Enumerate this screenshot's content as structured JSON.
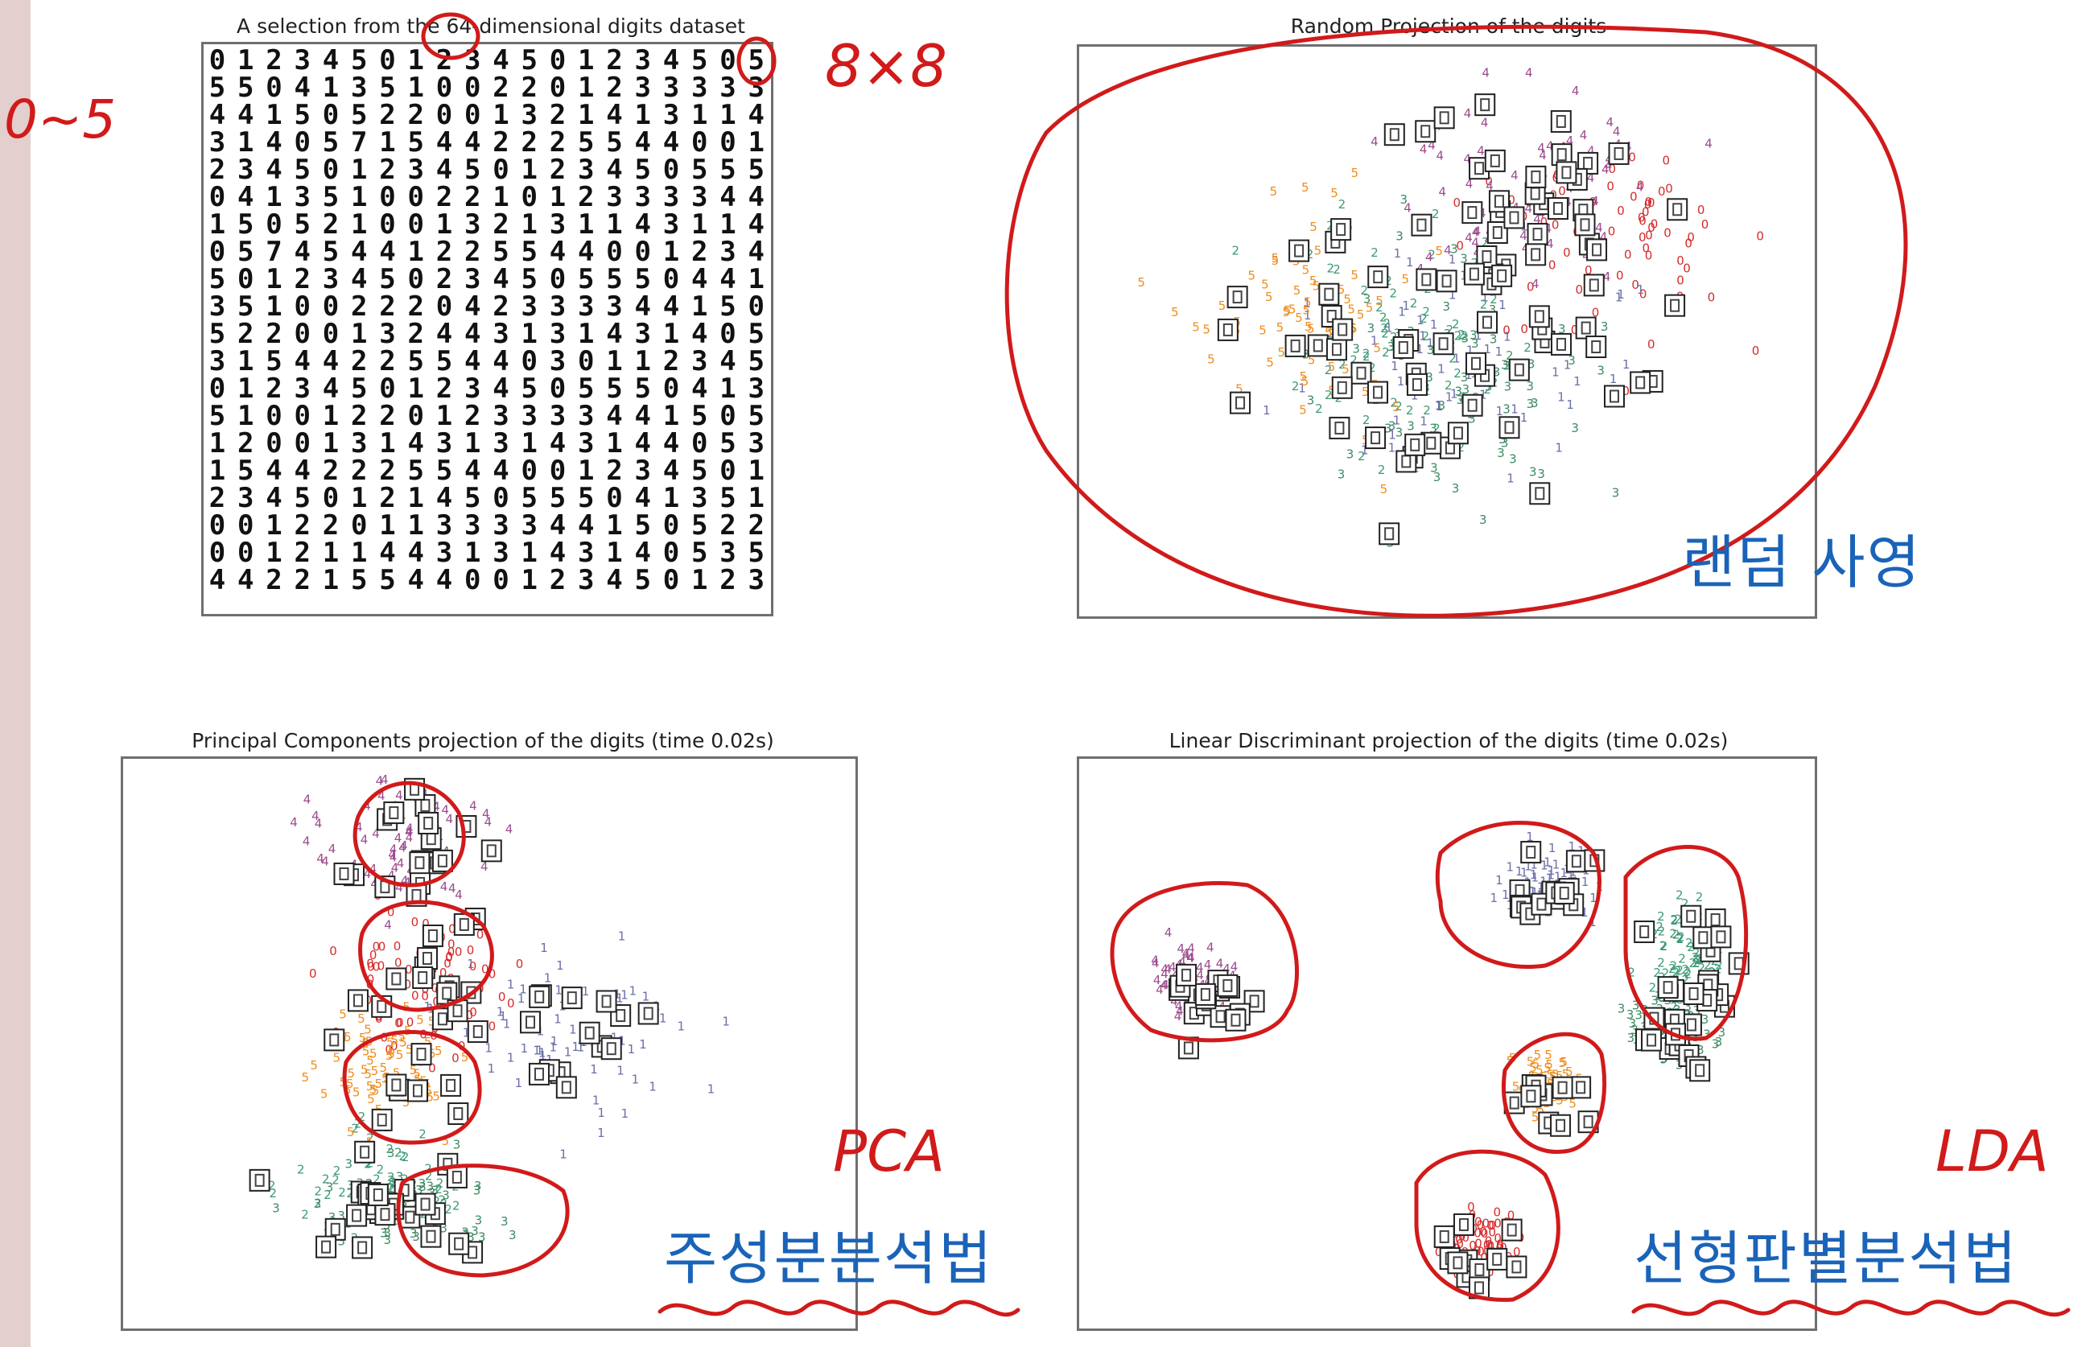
{
  "chart_data": [
    {
      "type": "table",
      "title": "A selection from the 64-dimensional digits dataset",
      "grid_size": [
        20,
        20
      ],
      "rows": [
        "01234501234501234505",
        "55041351002201233333",
        "44150522001321413114",
        "31405715442225544001",
        "23450123450123450555",
        "04135100221012333344",
        "15052100132131143114",
        "05745441225544001234",
        "50123450234505550441",
        "35100222042333344150",
        "52200132443131431405",
        "31544225544030112345",
        "01234501234505550413",
        "51001220123333441505",
        "12001314313143144053",
        "15442225544001234501",
        "23450121450555041351",
        "00122011333344150522",
        "00121144313143140535",
        "44221554400123450123"
      ]
    },
    {
      "type": "scatter",
      "title": "Random Projection of the digits",
      "classes": [
        "0",
        "1",
        "2",
        "3",
        "4",
        "5"
      ],
      "class_colors": [
        "#d62b2b",
        "#6b6fa8",
        "#3c9a74",
        "#3d8a63",
        "#9b4a8c",
        "#ef8c1c"
      ],
      "class_centers": [
        [
          0.72,
          0.35
        ],
        [
          0.52,
          0.55
        ],
        [
          0.45,
          0.55
        ],
        [
          0.5,
          0.6
        ],
        [
          0.6,
          0.25
        ],
        [
          0.3,
          0.5
        ]
      ],
      "class_spread": [
        [
          0.14,
          0.16
        ],
        [
          0.16,
          0.18
        ],
        [
          0.15,
          0.18
        ],
        [
          0.16,
          0.18
        ],
        [
          0.15,
          0.16
        ],
        [
          0.14,
          0.18
        ]
      ]
    },
    {
      "type": "scatter",
      "title": "Principal Components projection of the digits (time 0.02s)",
      "classes": [
        "0",
        "1",
        "2",
        "3",
        "4",
        "5"
      ],
      "class_colors": [
        "#d62b2b",
        "#6b6fa8",
        "#3c9a74",
        "#3d8a63",
        "#9b4a8c",
        "#ef8c1c"
      ],
      "class_centers": [
        [
          0.4,
          0.4
        ],
        [
          0.6,
          0.48
        ],
        [
          0.35,
          0.76
        ],
        [
          0.38,
          0.8
        ],
        [
          0.38,
          0.15
        ],
        [
          0.35,
          0.55
        ]
      ],
      "class_spread": [
        [
          0.09,
          0.1
        ],
        [
          0.15,
          0.12
        ],
        [
          0.1,
          0.07
        ],
        [
          0.1,
          0.07
        ],
        [
          0.1,
          0.09
        ],
        [
          0.08,
          0.09
        ]
      ]
    },
    {
      "type": "scatter",
      "title": "Linear Discriminant projection of the digits (time 0.02s)",
      "classes": [
        "0",
        "1",
        "2",
        "3",
        "4",
        "5"
      ],
      "class_colors": [
        "#d62b2b",
        "#6b6fa8",
        "#3c9a74",
        "#3d8a63",
        "#9b4a8c",
        "#ef8c1c"
      ],
      "class_centers": [
        [
          0.54,
          0.86
        ],
        [
          0.63,
          0.23
        ],
        [
          0.82,
          0.36
        ],
        [
          0.8,
          0.48
        ],
        [
          0.15,
          0.4
        ],
        [
          0.63,
          0.59
        ]
      ],
      "class_spread": [
        [
          0.04,
          0.05
        ],
        [
          0.05,
          0.06
        ],
        [
          0.04,
          0.09
        ],
        [
          0.05,
          0.05
        ],
        [
          0.04,
          0.05
        ],
        [
          0.04,
          0.05
        ]
      ]
    }
  ],
  "annotations": {
    "range_note": "0~5",
    "size_note": "8×8",
    "random_label": "랜덤 사영",
    "pca_label": "PCA",
    "pca_korean": "주성분분석법",
    "lda_label": "LDA",
    "lda_korean": "선형판별분석법",
    "ink_color": "#d11a1a",
    "text_color": "#1a63b8"
  }
}
